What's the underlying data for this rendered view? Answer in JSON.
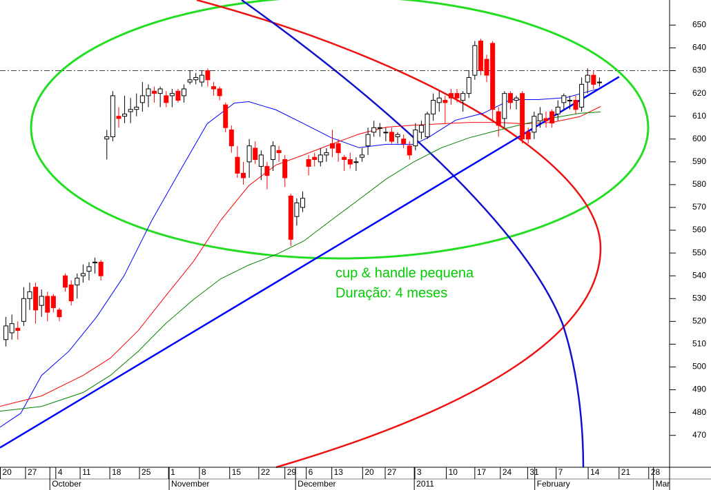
{
  "chart_data": {
    "type": "candlestick",
    "x": [
      0,
      1,
      2,
      3,
      4,
      5,
      6,
      7,
      8,
      9,
      10,
      11,
      12,
      13,
      14,
      15,
      16,
      17,
      18,
      19,
      20,
      21,
      22,
      23,
      24,
      25,
      26,
      27,
      28,
      29,
      30,
      31,
      32,
      33,
      34,
      35,
      36,
      37,
      38,
      39,
      40,
      41,
      42,
      43,
      44,
      45,
      46,
      47,
      48,
      49,
      50,
      51,
      52,
      53,
      54,
      55,
      56,
      57,
      58,
      59,
      60,
      61,
      62,
      63,
      64,
      65,
      66,
      67,
      68,
      69,
      70,
      71,
      72,
      73,
      74,
      75,
      76,
      77,
      78,
      79,
      80,
      81,
      82,
      83,
      84,
      85,
      86,
      87,
      88,
      89,
      90,
      91,
      92,
      93,
      94,
      95,
      96,
      97,
      98,
      99,
      100
    ],
    "open": [
      512,
      515,
      517,
      520,
      530,
      535,
      527,
      531,
      531,
      525,
      540,
      536,
      536,
      540,
      542,
      546,
      546,
      600,
      601,
      610,
      610,
      612,
      613,
      616,
      619,
      621,
      620,
      619,
      619,
      621,
      619,
      625,
      626,
      625,
      630,
      623,
      622,
      615,
      604,
      592,
      585,
      590,
      596,
      588,
      588,
      591,
      595,
      591,
      575,
      566,
      570,
      591,
      592,
      590,
      593,
      598,
      598,
      592,
      591,
      590,
      592,
      597,
      603,
      605,
      603,
      603,
      601,
      600,
      597,
      597,
      603,
      601,
      611,
      616,
      617,
      620,
      620,
      617,
      620,
      628,
      643,
      635,
      642,
      612,
      609,
      620,
      617,
      620,
      603,
      603,
      608,
      609,
      612,
      611,
      616,
      617,
      617,
      614,
      625,
      628,
      625
    ],
    "high": [
      522,
      523,
      520,
      535,
      537,
      537,
      534,
      533,
      532,
      526,
      541,
      538,
      541,
      545,
      546,
      548,
      547,
      604,
      621,
      614,
      619,
      618,
      620,
      625,
      624,
      623,
      623,
      621,
      622,
      622,
      624,
      630,
      629,
      630,
      631,
      625,
      623,
      616,
      606,
      597,
      590,
      600,
      599,
      595,
      590,
      599,
      597,
      593,
      576,
      574,
      577,
      593,
      594,
      596,
      596,
      604,
      600,
      593,
      594,
      592,
      596,
      605,
      608,
      607,
      605,
      605,
      603,
      602,
      599,
      607,
      608,
      612,
      620,
      621,
      619,
      622,
      622,
      621,
      630,
      643,
      644,
      637,
      643,
      614,
      621,
      621,
      619,
      621,
      605,
      612,
      614,
      612,
      613,
      617,
      620,
      619,
      619,
      627,
      631,
      630,
      627
    ],
    "low": [
      509,
      512,
      512,
      518,
      525,
      519,
      522,
      520,
      524,
      520,
      533,
      527,
      530,
      537,
      538,
      541,
      538,
      591,
      599,
      605,
      607,
      607,
      610,
      612,
      614,
      616,
      614,
      614,
      614,
      616,
      616,
      624,
      624,
      623,
      623,
      619,
      617,
      603,
      594,
      583,
      580,
      583,
      589,
      582,
      578,
      586,
      590,
      579,
      553,
      562,
      568,
      584,
      588,
      588,
      590,
      592,
      590,
      586,
      587,
      586,
      590,
      593,
      601,
      601,
      599,
      598,
      598,
      596,
      591,
      595,
      600,
      600,
      608,
      612,
      607,
      615,
      616,
      612,
      618,
      626,
      628,
      625,
      608,
      601,
      605,
      613,
      613,
      598,
      598,
      600,
      605,
      605,
      605,
      608,
      613,
      613,
      611,
      612,
      620,
      622,
      623
    ],
    "close": [
      518,
      519,
      516,
      530,
      533,
      525,
      531,
      524,
      526,
      522,
      535,
      529,
      539,
      541,
      544,
      546,
      540,
      601,
      619,
      609,
      611,
      613,
      614,
      619,
      622,
      620,
      622,
      616,
      620,
      617,
      622,
      626,
      627,
      628,
      626,
      622,
      619,
      605,
      597,
      585,
      583,
      597,
      591,
      593,
      584,
      597,
      594,
      583,
      556,
      572,
      574,
      588,
      591,
      593,
      594,
      596,
      594,
      591,
      589,
      590,
      593,
      602,
      605,
      605,
      603,
      599,
      602,
      598,
      593,
      604,
      606,
      611,
      617,
      618,
      616,
      618,
      618,
      620,
      627,
      641,
      630,
      628,
      613,
      606,
      620,
      616,
      618,
      600,
      600,
      610,
      611,
      608,
      607,
      614,
      619,
      617,
      613,
      624,
      628,
      624,
      625
    ],
    "up_color": "#ffffff",
    "down_color": "#ff0000",
    "moving_averages": [
      {
        "color": "#0000ff",
        "x": [
          -1,
          2.5,
          6.0,
          10.6,
          15.3,
          19.9,
          24.6,
          29.2,
          33.9,
          38.5,
          40.9,
          45.5,
          50.2,
          54.8,
          59.5,
          64.1,
          68.8,
          71.1,
          75.8,
          80.4,
          85.1,
          89.7,
          94.4,
          99.6
        ],
        "values": [
          473.6,
          479.7,
          496.3,
          506.9,
          522,
          540,
          564.4,
          585.5,
          606.7,
          615.8,
          616.4,
          612.8,
          606.7,
          600.6,
          596.2,
          597.7,
          597.7,
          600.6,
          608.3,
          611.3,
          617.3,
          617.3,
          618.2,
          621.9
        ]
      },
      {
        "color": "#ff0000",
        "x": [
          -1,
          6.0,
          13.0,
          17.6,
          22.3,
          26.9,
          31.6,
          36.2,
          40.9,
          45.5,
          50.2,
          54.8,
          59.5,
          64.1,
          68.8,
          73.4,
          78.1,
          82.7,
          87.4,
          92.0,
          96.7,
          100.2
        ],
        "values": [
          482.7,
          487.3,
          496.3,
          503.9,
          516,
          531.1,
          546.3,
          564.4,
          579.5,
          588.6,
          593.1,
          597.7,
          602.2,
          605.2,
          606.1,
          606.7,
          607.3,
          607.3,
          606.7,
          607.3,
          609.8,
          614.3
        ]
      },
      {
        "color": "#008000",
        "x": [
          -1,
          6.0,
          13.0,
          17.6,
          22.3,
          26.9,
          31.6,
          36.2,
          40.9,
          45.5,
          50.2,
          54.8,
          59.5,
          64.1,
          68.8,
          73.4,
          78.1,
          82.7,
          87.4,
          92.0,
          96.7,
          100.2
        ],
        "values": [
          480.6,
          482.7,
          488.8,
          496.3,
          506.9,
          519,
          529.6,
          538.7,
          544.7,
          549.3,
          555.3,
          564.4,
          573.5,
          582.5,
          590.1,
          596.2,
          600.6,
          603.7,
          606.7,
          609.2,
          611.3,
          611.9
        ]
      }
    ],
    "trendline": {
      "color": "#0000ff",
      "x": [
        -1,
        103.3
      ],
      "values": [
        464.6,
        627.3
      ]
    },
    "hline": 630,
    "annotations": [
      {
        "text": "cup & handle pequena",
        "color": "#00cc00"
      },
      {
        "text": "Duração: 4 meses",
        "color": "#00cc00"
      }
    ],
    "xlim": [
      -1,
      111.7
    ],
    "xticks": [
      {
        "value": -1,
        "label": "20"
      },
      {
        "value": 3.3,
        "label": "27"
      },
      {
        "value": 8.4,
        "label": "4"
      },
      {
        "value": 12.5,
        "label": "11"
      },
      {
        "value": 17.5,
        "label": "18"
      },
      {
        "value": 22.5,
        "label": "25"
      },
      {
        "value": 27.4,
        "label": "1"
      },
      {
        "value": 32.6,
        "label": "8"
      },
      {
        "value": 37.7,
        "label": "15"
      },
      {
        "value": 42.6,
        "label": "22"
      },
      {
        "value": 47.0,
        "label": "29"
      },
      {
        "value": 50.6,
        "label": "6"
      },
      {
        "value": 54.9,
        "label": "13"
      },
      {
        "value": 60.1,
        "label": "20"
      },
      {
        "value": 63.9,
        "label": "27"
      },
      {
        "value": 68.9,
        "label": "3"
      },
      {
        "value": 74.2,
        "label": "10"
      },
      {
        "value": 79.0,
        "label": "17"
      },
      {
        "value": 83.3,
        "label": "24"
      },
      {
        "value": 87.9,
        "label": "31"
      },
      {
        "value": 92.7,
        "label": "7"
      },
      {
        "value": 98.1,
        "label": "14"
      },
      {
        "value": 103.3,
        "label": "21"
      },
      {
        "value": 108.3,
        "label": "28"
      }
    ],
    "month_ticks": [
      {
        "value": 7.4,
        "label": "October"
      },
      {
        "value": 27.5,
        "label": "November"
      },
      {
        "value": 48.8,
        "label": "December"
      },
      {
        "value": 68.8,
        "label": "2011"
      },
      {
        "value": 89.1,
        "label": "February"
      },
      {
        "value": 109.1,
        "label": "Mar"
      }
    ],
    "ylim": [
      456,
      661
    ],
    "yticks": [
      470,
      480,
      490,
      500,
      510,
      520,
      530,
      540,
      550,
      560,
      570,
      580,
      590,
      600,
      610,
      620,
      630,
      640,
      650
    ]
  }
}
